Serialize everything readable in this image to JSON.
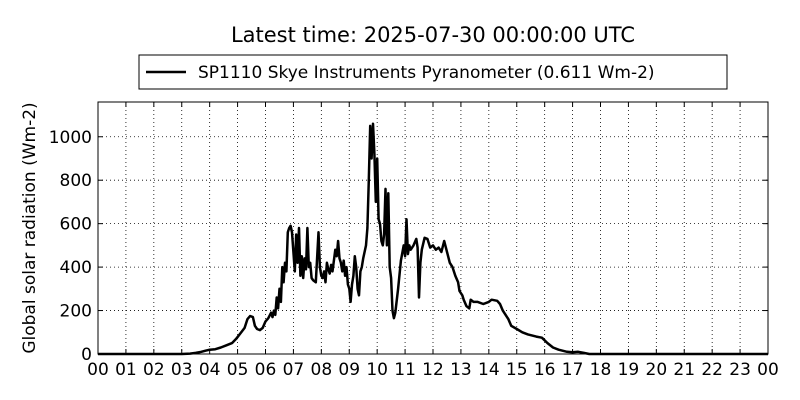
{
  "chart_data": {
    "type": "line",
    "title": "Latest time: 2025-07-30 00:00:00 UTC",
    "xlabel": "",
    "ylabel": "Global solar radiation (Wm-2)",
    "xlim": [
      0,
      24
    ],
    "ylim": [
      0,
      1160
    ],
    "x_tick_labels": [
      "00",
      "01",
      "02",
      "03",
      "04",
      "05",
      "06",
      "07",
      "08",
      "09",
      "10",
      "11",
      "12",
      "13",
      "14",
      "15",
      "16",
      "17",
      "18",
      "19",
      "20",
      "21",
      "22",
      "23",
      "00"
    ],
    "y_ticks": [
      0,
      200,
      400,
      600,
      800,
      1000
    ],
    "grid": true,
    "legend_position": "top-center",
    "series": [
      {
        "name": "SP1110 Skye Instruments Pyranometer (0.611 Wm-2)",
        "color": "#000000",
        "points": [
          [
            0,
            0
          ],
          [
            3.0,
            0
          ],
          [
            3.3,
            2
          ],
          [
            3.5,
            5
          ],
          [
            3.7,
            10
          ],
          [
            3.85,
            15
          ],
          [
            4.0,
            20
          ],
          [
            4.2,
            22
          ],
          [
            4.4,
            30
          ],
          [
            4.6,
            40
          ],
          [
            4.8,
            50
          ],
          [
            4.95,
            70
          ],
          [
            5.1,
            95
          ],
          [
            5.25,
            120
          ],
          [
            5.35,
            160
          ],
          [
            5.45,
            175
          ],
          [
            5.55,
            170
          ],
          [
            5.62,
            130
          ],
          [
            5.7,
            115
          ],
          [
            5.8,
            110
          ],
          [
            5.9,
            120
          ],
          [
            6.0,
            150
          ],
          [
            6.1,
            165
          ],
          [
            6.2,
            190
          ],
          [
            6.25,
            170
          ],
          [
            6.3,
            200
          ],
          [
            6.35,
            180
          ],
          [
            6.4,
            260
          ],
          [
            6.45,
            210
          ],
          [
            6.5,
            300
          ],
          [
            6.55,
            240
          ],
          [
            6.6,
            400
          ],
          [
            6.65,
            330
          ],
          [
            6.7,
            420
          ],
          [
            6.75,
            380
          ],
          [
            6.8,
            560
          ],
          [
            6.85,
            580
          ],
          [
            6.9,
            590
          ],
          [
            6.95,
            560
          ],
          [
            7.0,
            470
          ],
          [
            7.05,
            380
          ],
          [
            7.1,
            550
          ],
          [
            7.15,
            420
          ],
          [
            7.2,
            580
          ],
          [
            7.25,
            360
          ],
          [
            7.3,
            450
          ],
          [
            7.35,
            350
          ],
          [
            7.4,
            440
          ],
          [
            7.45,
            390
          ],
          [
            7.5,
            580
          ],
          [
            7.55,
            400
          ],
          [
            7.6,
            420
          ],
          [
            7.65,
            350
          ],
          [
            7.7,
            340
          ],
          [
            7.8,
            330
          ],
          [
            7.9,
            560
          ],
          [
            7.95,
            400
          ],
          [
            8.0,
            360
          ],
          [
            8.05,
            350
          ],
          [
            8.1,
            380
          ],
          [
            8.15,
            330
          ],
          [
            8.2,
            420
          ],
          [
            8.25,
            390
          ],
          [
            8.3,
            370
          ],
          [
            8.35,
            410
          ],
          [
            8.4,
            380
          ],
          [
            8.5,
            480
          ],
          [
            8.55,
            450
          ],
          [
            8.6,
            520
          ],
          [
            8.65,
            440
          ],
          [
            8.7,
            420
          ],
          [
            8.75,
            380
          ],
          [
            8.8,
            430
          ],
          [
            8.85,
            360
          ],
          [
            8.9,
            400
          ],
          [
            8.95,
            320
          ],
          [
            9.0,
            300
          ],
          [
            9.05,
            240
          ],
          [
            9.1,
            320
          ],
          [
            9.15,
            360
          ],
          [
            9.2,
            450
          ],
          [
            9.25,
            400
          ],
          [
            9.3,
            300
          ],
          [
            9.35,
            270
          ],
          [
            9.4,
            380
          ],
          [
            9.45,
            400
          ],
          [
            9.5,
            440
          ],
          [
            9.6,
            500
          ],
          [
            9.65,
            580
          ],
          [
            9.7,
            800
          ],
          [
            9.75,
            1050
          ],
          [
            9.8,
            900
          ],
          [
            9.85,
            1060
          ],
          [
            9.9,
            920
          ],
          [
            9.95,
            700
          ],
          [
            10.0,
            900
          ],
          [
            10.05,
            620
          ],
          [
            10.1,
            600
          ],
          [
            10.15,
            520
          ],
          [
            10.2,
            500
          ],
          [
            10.25,
            550
          ],
          [
            10.3,
            760
          ],
          [
            10.35,
            500
          ],
          [
            10.4,
            740
          ],
          [
            10.45,
            400
          ],
          [
            10.5,
            350
          ],
          [
            10.55,
            200
          ],
          [
            10.6,
            165
          ],
          [
            10.65,
            190
          ],
          [
            10.75,
            300
          ],
          [
            10.85,
            430
          ],
          [
            10.95,
            500
          ],
          [
            11.0,
            450
          ],
          [
            11.05,
            620
          ],
          [
            11.1,
            460
          ],
          [
            11.15,
            500
          ],
          [
            11.2,
            480
          ],
          [
            11.3,
            500
          ],
          [
            11.4,
            530
          ],
          [
            11.45,
            490
          ],
          [
            11.5,
            260
          ],
          [
            11.55,
            420
          ],
          [
            11.6,
            480
          ],
          [
            11.7,
            535
          ],
          [
            11.8,
            530
          ],
          [
            11.9,
            490
          ],
          [
            12.0,
            500
          ],
          [
            12.1,
            480
          ],
          [
            12.2,
            490
          ],
          [
            12.3,
            470
          ],
          [
            12.4,
            520
          ],
          [
            12.5,
            470
          ],
          [
            12.6,
            420
          ],
          [
            12.7,
            400
          ],
          [
            12.8,
            360
          ],
          [
            12.9,
            330
          ],
          [
            12.95,
            290
          ],
          [
            13.05,
            270
          ],
          [
            13.1,
            250
          ],
          [
            13.2,
            220
          ],
          [
            13.3,
            210
          ],
          [
            13.35,
            250
          ],
          [
            13.45,
            240
          ],
          [
            13.6,
            240
          ],
          [
            13.8,
            230
          ],
          [
            14.0,
            240
          ],
          [
            14.1,
            250
          ],
          [
            14.3,
            245
          ],
          [
            14.4,
            230
          ],
          [
            14.5,
            200
          ],
          [
            14.7,
            160
          ],
          [
            14.8,
            130
          ],
          [
            15.0,
            115
          ],
          [
            15.2,
            100
          ],
          [
            15.4,
            90
          ],
          [
            15.7,
            80
          ],
          [
            15.9,
            75
          ],
          [
            16.1,
            50
          ],
          [
            16.3,
            30
          ],
          [
            16.5,
            20
          ],
          [
            16.8,
            10
          ],
          [
            17.0,
            8
          ],
          [
            17.2,
            10
          ],
          [
            17.4,
            5
          ],
          [
            17.6,
            0
          ],
          [
            24,
            0
          ]
        ]
      }
    ]
  }
}
